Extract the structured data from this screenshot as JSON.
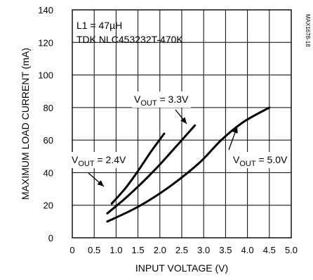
{
  "chart_data": {
    "type": "line",
    "xlabel": "INPUT VOLTAGE (V)",
    "ylabel": "MAXIMUM LOAD CURRENT (mA)",
    "xlim": [
      0,
      5.0
    ],
    "ylim": [
      0,
      140
    ],
    "x_ticks": [
      "0",
      "0.5",
      "1.0",
      "1.5",
      "2.0",
      "2.5",
      "3.0",
      "3.5",
      "4.0",
      "4.5",
      "5.0"
    ],
    "y_ticks": [
      "0",
      "20",
      "40",
      "60",
      "80",
      "100",
      "120",
      "140"
    ],
    "grid": true,
    "annotations": {
      "inductor": "L1 = 47µH",
      "part": "TDK NLC453232T-470K",
      "code": "MAX1678-18"
    },
    "series": [
      {
        "name_prefix": "V",
        "name_sub": "OUT",
        "name_suffix": " = 2.4V",
        "points": [
          [
            0.9,
            21
          ],
          [
            1.2,
            30
          ],
          [
            1.5,
            41
          ],
          [
            1.8,
            53
          ],
          [
            2.1,
            64
          ]
        ]
      },
      {
        "name_prefix": "V",
        "name_sub": "OUT",
        "name_suffix": " = 3.3V",
        "points": [
          [
            0.8,
            15
          ],
          [
            1.2,
            24
          ],
          [
            1.6,
            34
          ],
          [
            2.0,
            45
          ],
          [
            2.4,
            57
          ],
          [
            2.8,
            69
          ]
        ]
      },
      {
        "name_prefix": "V",
        "name_sub": "OUT",
        "name_suffix": " = 5.0V",
        "points": [
          [
            0.8,
            10
          ],
          [
            1.5,
            19
          ],
          [
            2.2,
            31
          ],
          [
            2.9,
            46
          ],
          [
            3.4,
            60
          ],
          [
            3.9,
            71
          ],
          [
            4.5,
            80
          ]
        ]
      }
    ]
  }
}
